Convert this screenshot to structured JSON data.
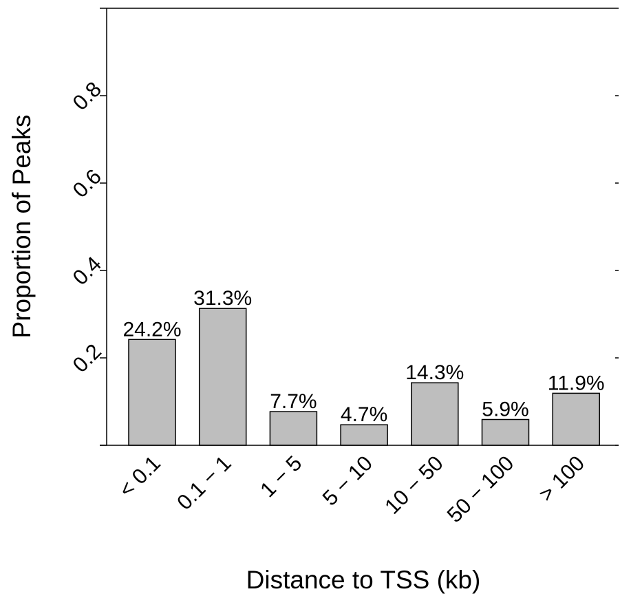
{
  "chart_data": {
    "type": "bar",
    "categories": [
      "< 0.1",
      "0.1 − 1",
      "1 − 5",
      "5 − 10",
      "10 − 50",
      "50 − 100",
      "> 100"
    ],
    "values": [
      0.242,
      0.313,
      0.077,
      0.047,
      0.143,
      0.059,
      0.119
    ],
    "data_labels": [
      "24.2%",
      "31.3%",
      "7.7%",
      "4.7%",
      "14.3%",
      "5.9%",
      "11.9%"
    ],
    "yticks": [
      0.2,
      0.4,
      0.6,
      0.8
    ],
    "ytick_labels": [
      "0.2",
      "0.4",
      "0.6",
      "0.8"
    ],
    "xlabel": "Distance to TSS (kb)",
    "ylabel": "Proportion of Peaks",
    "ylim": [
      0,
      1.0
    ],
    "grid": false,
    "bar_color": "#bebebe",
    "edge_color": "#000000"
  }
}
